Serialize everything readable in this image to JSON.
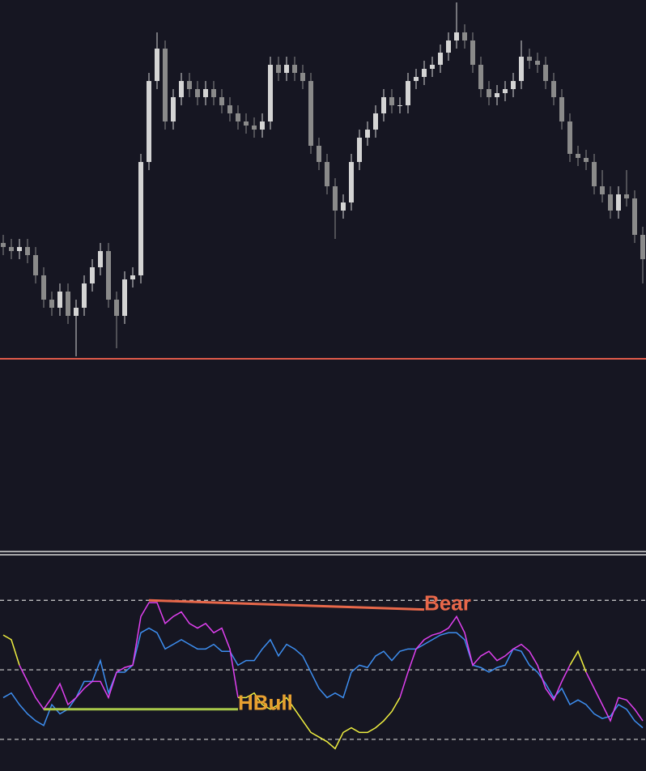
{
  "chart_data": [
    {
      "type": "candlestick",
      "ylim": [
        0,
        680
      ],
      "up_color": "#d4d4d4",
      "down_color": "#8a8a8a",
      "open": [
        380,
        375,
        370,
        375,
        365,
        340,
        310,
        300,
        320,
        290,
        300,
        330,
        350,
        370,
        310,
        290,
        335,
        340,
        480,
        580,
        620,
        530,
        560,
        580,
        570,
        560,
        570,
        560,
        550,
        540,
        530,
        525,
        520,
        530,
        600,
        590,
        600,
        590,
        580,
        500,
        480,
        450,
        420,
        430,
        480,
        510,
        520,
        540,
        560,
        550,
        550,
        580,
        585,
        595,
        600,
        615,
        630,
        640,
        630,
        600,
        570,
        560,
        565,
        570,
        580,
        610,
        605,
        600,
        580,
        560,
        530,
        490,
        485,
        480,
        450,
        440,
        420,
        440,
        435,
        390
      ],
      "high": [
        390,
        385,
        385,
        385,
        375,
        350,
        320,
        330,
        330,
        310,
        340,
        360,
        380,
        380,
        320,
        345,
        350,
        490,
        590,
        640,
        630,
        570,
        590,
        590,
        580,
        580,
        580,
        570,
        560,
        550,
        540,
        535,
        540,
        610,
        610,
        610,
        610,
        600,
        590,
        510,
        490,
        460,
        440,
        490,
        520,
        530,
        550,
        570,
        570,
        560,
        590,
        595,
        605,
        610,
        625,
        640,
        677,
        650,
        640,
        610,
        580,
        575,
        580,
        590,
        630,
        620,
        615,
        610,
        590,
        570,
        540,
        500,
        495,
        490,
        470,
        450,
        450,
        470,
        445,
        400
      ],
      "low": [
        365,
        360,
        360,
        355,
        330,
        300,
        290,
        290,
        280,
        240,
        290,
        320,
        340,
        300,
        250,
        280,
        325,
        330,
        470,
        570,
        520,
        520,
        550,
        560,
        550,
        550,
        550,
        540,
        530,
        520,
        515,
        510,
        510,
        520,
        580,
        580,
        580,
        570,
        490,
        470,
        440,
        385,
        410,
        420,
        470,
        500,
        510,
        530,
        540,
        540,
        540,
        570,
        575,
        585,
        590,
        605,
        620,
        620,
        590,
        560,
        550,
        550,
        555,
        560,
        570,
        595,
        590,
        570,
        550,
        520,
        480,
        475,
        470,
        440,
        430,
        410,
        410,
        425,
        380,
        330
      ],
      "close": [
        375,
        370,
        375,
        365,
        340,
        310,
        300,
        320,
        290,
        300,
        330,
        350,
        370,
        310,
        290,
        335,
        340,
        480,
        580,
        620,
        530,
        560,
        580,
        570,
        560,
        570,
        560,
        550,
        540,
        530,
        525,
        520,
        530,
        600,
        590,
        600,
        590,
        580,
        500,
        480,
        450,
        420,
        430,
        480,
        510,
        520,
        540,
        560,
        550,
        550,
        580,
        585,
        595,
        600,
        615,
        630,
        640,
        630,
        600,
        570,
        560,
        565,
        570,
        580,
        610,
        605,
        600,
        580,
        560,
        530,
        490,
        485,
        480,
        450,
        440,
        420,
        440,
        435,
        390,
        360
      ],
      "hline": {
        "value": 237,
        "color": "#e05a4a"
      }
    },
    {
      "type": "line",
      "ylim": [
        6,
        100
      ],
      "levels": [
        80,
        50,
        20
      ],
      "series": [
        {
          "color": "#3d8ef0",
          "values": [
            38,
            40,
            35,
            31,
            28,
            26,
            35,
            31,
            33,
            38,
            45,
            45,
            54,
            40,
            49,
            49,
            52,
            66,
            68,
            66,
            59,
            61,
            63,
            61,
            59,
            59,
            61,
            58,
            58,
            52,
            54,
            54,
            59,
            63,
            56,
            61,
            59,
            56,
            49,
            42,
            38,
            40,
            38,
            49,
            52,
            51,
            56,
            58,
            54,
            58,
            59,
            59,
            61,
            63,
            65,
            66,
            66,
            63,
            52,
            51,
            49,
            51,
            52,
            59,
            58,
            52,
            49,
            44,
            38,
            42,
            35,
            37,
            35,
            31,
            29,
            30,
            35,
            33,
            28,
            25
          ]
        },
        {
          "color": "#e040f0",
          "values": [
            null,
            null,
            52,
            45,
            38,
            33,
            38,
            44,
            35,
            38,
            42,
            45,
            45,
            38,
            49,
            51,
            52,
            73,
            79,
            79,
            70,
            73,
            75,
            70,
            68,
            70,
            66,
            68,
            59,
            38,
            null,
            null,
            null,
            null,
            null,
            null,
            null,
            null,
            null,
            null,
            null,
            null,
            null,
            null,
            null,
            null,
            null,
            null,
            null,
            38,
            49,
            59,
            63,
            65,
            66,
            68,
            73,
            66,
            52,
            56,
            58,
            54,
            56,
            59,
            61,
            58,
            52,
            42,
            37,
            45,
            52,
            null,
            49,
            42,
            35,
            28,
            38,
            37,
            33,
            28
          ]
        },
        {
          "color": "#f0f040",
          "values": [
            65,
            63,
            52,
            null,
            null,
            null,
            null,
            null,
            null,
            null,
            null,
            null,
            null,
            null,
            null,
            null,
            null,
            null,
            null,
            null,
            null,
            null,
            null,
            null,
            null,
            null,
            null,
            null,
            null,
            38,
            38,
            40,
            35,
            33,
            35,
            38,
            33,
            28,
            23,
            21,
            19,
            16,
            23,
            25,
            23,
            23,
            25,
            28,
            32,
            38,
            null,
            null,
            null,
            null,
            null,
            null,
            null,
            null,
            null,
            null,
            null,
            null,
            null,
            null,
            null,
            null,
            null,
            null,
            null,
            null,
            52,
            58,
            49,
            null,
            null,
            null,
            null,
            null,
            null,
            null
          ]
        }
      ],
      "annotations": [
        {
          "text": "Bear",
          "x": [
            18,
            52
          ],
          "values": [
            80,
            76
          ],
          "color": "#e8684a",
          "label_color": "#e8684a"
        },
        {
          "text": "HBull",
          "x": [
            5,
            29
          ],
          "values": [
            33,
            33
          ],
          "color": "#a8c84a",
          "label_color": "#e8a030"
        }
      ]
    }
  ]
}
